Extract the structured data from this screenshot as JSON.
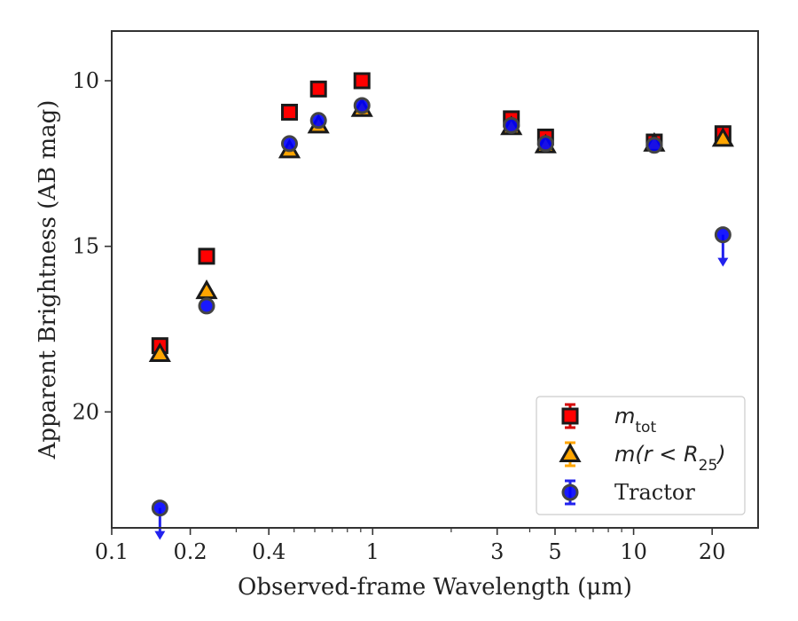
{
  "chart_data": {
    "type": "scatter",
    "xlabel": "Observed-frame Wavelength (μm)",
    "ylabel": "Apparent Brightness (AB mag)",
    "xscale": "log",
    "xlim": [
      0.1,
      30
    ],
    "ylim": [
      23.5,
      8.5
    ],
    "y_inverted": true,
    "grid": false,
    "legend_position": "lower-right",
    "x_ticks": [
      {
        "value": 0.1,
        "label": "0.1"
      },
      {
        "value": 0.2,
        "label": "0.2"
      },
      {
        "value": 0.4,
        "label": "0.4"
      },
      {
        "value": 1,
        "label": "1"
      },
      {
        "value": 3,
        "label": "3"
      },
      {
        "value": 5,
        "label": "5"
      },
      {
        "value": 10,
        "label": "10"
      },
      {
        "value": 20,
        "label": "20"
      }
    ],
    "y_ticks": [
      {
        "value": 10,
        "label": "10"
      },
      {
        "value": 15,
        "label": "15"
      },
      {
        "value": 20,
        "label": "20"
      }
    ],
    "series": [
      {
        "name": "m_tot",
        "legend_parts": [
          "m",
          "tot",
          ""
        ],
        "marker": "square",
        "color": "#ff0000",
        "errcolor": "#d40000",
        "points": [
          {
            "x": 0.153,
            "y": 18.0
          },
          {
            "x": 0.231,
            "y": 15.3
          },
          {
            "x": 0.48,
            "y": 10.95
          },
          {
            "x": 0.62,
            "y": 10.25
          },
          {
            "x": 0.91,
            "y": 10.0
          },
          {
            "x": 3.4,
            "y": 11.15
          },
          {
            "x": 4.6,
            "y": 11.7
          },
          {
            "x": 12.0,
            "y": 11.85
          },
          {
            "x": 22.0,
            "y": 11.6
          }
        ]
      },
      {
        "name": "m(r < R25)",
        "legend_parts": [
          "m(r < R",
          "25",
          ")"
        ],
        "marker": "triangle",
        "color": "#ffa500",
        "errcolor": "#ffa500",
        "points": [
          {
            "x": 0.153,
            "y": 18.25
          },
          {
            "x": 0.231,
            "y": 16.35
          },
          {
            "x": 0.48,
            "y": 12.1
          },
          {
            "x": 0.62,
            "y": 11.35
          },
          {
            "x": 0.91,
            "y": 10.85
          },
          {
            "x": 3.4,
            "y": 11.4
          },
          {
            "x": 4.6,
            "y": 11.95
          },
          {
            "x": 12.0,
            "y": 11.9
          },
          {
            "x": 22.0,
            "y": 11.75
          }
        ]
      },
      {
        "name": "Tractor",
        "legend_parts": [
          "Tractor",
          "",
          ""
        ],
        "marker": "circle",
        "color": "#0000ff",
        "errcolor": "#2222ee",
        "points": [
          {
            "x": 0.153,
            "y": 22.9,
            "upper_limit": true
          },
          {
            "x": 0.231,
            "y": 16.8
          },
          {
            "x": 0.48,
            "y": 11.9
          },
          {
            "x": 0.62,
            "y": 11.2
          },
          {
            "x": 0.91,
            "y": 10.75
          },
          {
            "x": 3.4,
            "y": 11.35
          },
          {
            "x": 4.6,
            "y": 11.9
          },
          {
            "x": 12.0,
            "y": 11.95
          },
          {
            "x": 22.0,
            "y": 14.65,
            "upper_limit": true
          }
        ]
      }
    ]
  }
}
